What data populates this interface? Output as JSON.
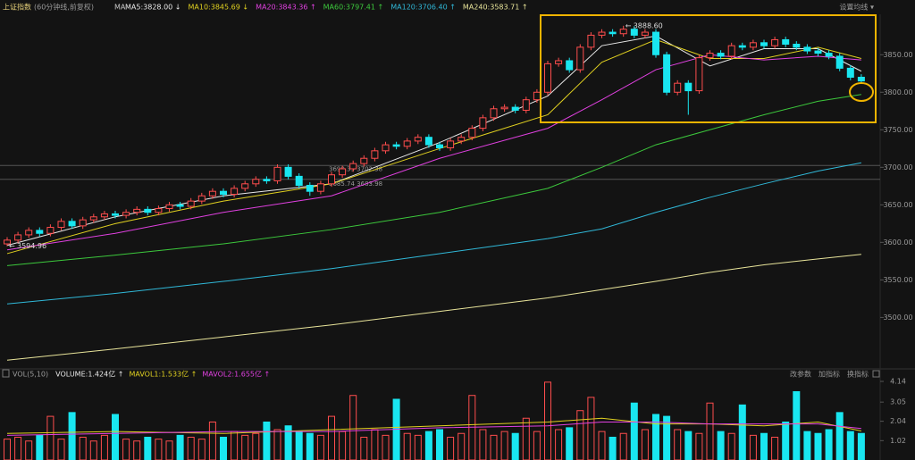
{
  "header": {
    "title": "上证指数",
    "subtitle": "(60分钟线,前复权)",
    "ma_label": "MA",
    "settings": "设置均线 ▾"
  },
  "chart_data": [
    {
      "type": "candlestick",
      "open": [
        3598,
        3603,
        3610,
        3616,
        3612,
        3620,
        3628,
        3622,
        3630,
        3634,
        3638,
        3636,
        3640,
        3644,
        3640,
        3645,
        3650,
        3648,
        3655,
        3662,
        3668,
        3664,
        3672,
        3678,
        3684,
        3682,
        3700,
        3688,
        3676,
        3668,
        3678,
        3690,
        3698,
        3705,
        3712,
        3722,
        3730,
        3728,
        3735,
        3740,
        3730,
        3726,
        3735,
        3740,
        3752,
        3766,
        3778,
        3780,
        3776,
        3790,
        3800,
        3838,
        3842,
        3830,
        3860,
        3876,
        3880,
        3878,
        3884,
        3876,
        3880,
        3850,
        3800,
        3812,
        3802,
        3846,
        3852,
        3848,
        3862,
        3860,
        3866,
        3862,
        3870,
        3864,
        3860,
        3855,
        3852,
        3848,
        3832,
        3820
      ],
      "high": [
        3607,
        3614,
        3620,
        3620,
        3624,
        3632,
        3632,
        3634,
        3638,
        3642,
        3642,
        3644,
        3648,
        3648,
        3649,
        3654,
        3654,
        3659,
        3666,
        3672,
        3672,
        3676,
        3682,
        3688,
        3688,
        3704,
        3704,
        3692,
        3680,
        3682,
        3694,
        3702,
        3709,
        3716,
        3726,
        3734,
        3734,
        3739,
        3744,
        3744,
        3734,
        3739,
        3744,
        3756,
        3770,
        3782,
        3784,
        3784,
        3794,
        3804,
        3842,
        3846,
        3846,
        3864,
        3880,
        3884,
        3884,
        3888.6,
        3888,
        3884,
        3884,
        3854,
        3816,
        3816,
        3850,
        3856,
        3856,
        3866,
        3866,
        3870,
        3870,
        3874,
        3874,
        3868,
        3864,
        3859,
        3856,
        3852,
        3836,
        3824
      ],
      "low": [
        3594.96,
        3599,
        3606,
        3608,
        3608,
        3616,
        3618,
        3618,
        3626,
        3630,
        3632,
        3632,
        3636,
        3636,
        3636,
        3641,
        3644,
        3644,
        3651,
        3658,
        3660,
        3660,
        3668,
        3674,
        3678,
        3678,
        3684,
        3672,
        3662,
        3664,
        3674,
        3686,
        3694,
        3701,
        3708,
        3718,
        3724,
        3724,
        3731,
        3726,
        3722,
        3722,
        3731,
        3736,
        3748,
        3762,
        3774,
        3772,
        3772,
        3786,
        3796,
        3834,
        3826,
        3826,
        3856,
        3872,
        3874,
        3874,
        3872,
        3872,
        3846,
        3796,
        3796,
        3770,
        3798,
        3842,
        3844,
        3844,
        3856,
        3856,
        3858,
        3858,
        3860,
        3856,
        3851,
        3848,
        3844,
        3828,
        3816,
        3811
      ],
      "close": [
        3603,
        3610,
        3616,
        3612,
        3620,
        3628,
        3622,
        3630,
        3634,
        3638,
        3636,
        3640,
        3644,
        3640,
        3645,
        3650,
        3648,
        3655,
        3662,
        3668,
        3664,
        3672,
        3678,
        3684,
        3682,
        3700,
        3688,
        3676,
        3668,
        3678,
        3690,
        3698,
        3705,
        3712,
        3722,
        3730,
        3728,
        3735,
        3740,
        3730,
        3726,
        3735,
        3740,
        3752,
        3766,
        3778,
        3780,
        3776,
        3790,
        3800,
        3838,
        3842,
        3830,
        3860,
        3876,
        3880,
        3878,
        3884,
        3876,
        3880,
        3850,
        3800,
        3812,
        3802,
        3846,
        3852,
        3848,
        3862,
        3860,
        3866,
        3862,
        3870,
        3864,
        3860,
        3855,
        3852,
        3848,
        3832,
        3820,
        3815
      ],
      "up_color": "#ff4d4d",
      "down_color": "#19e6f0",
      "ylim": [
        3435,
        3911
      ],
      "yticks": [
        {
          "value": 3850,
          "label": "3850.00"
        },
        {
          "value": 3800,
          "label": "3800.00"
        },
        {
          "value": 3750,
          "label": "3750.00"
        },
        {
          "value": 3700,
          "label": "3700.00"
        },
        {
          "value": 3650,
          "label": "3650.00"
        },
        {
          "value": 3600,
          "label": "3600.00"
        },
        {
          "value": 3550,
          "label": "3550.00"
        },
        {
          "value": 3500,
          "label": "3500.00"
        }
      ],
      "series": [
        {
          "name": "MA5:3828.00 ↓",
          "color": "#e8e8e8",
          "x": [
            0,
            10,
            20,
            30,
            40,
            50,
            55,
            60,
            65,
            70,
            75,
            79
          ],
          "values": [
            3596,
            3634,
            3662,
            3678,
            3733,
            3795,
            3862,
            3875,
            3835,
            3858,
            3858,
            3828
          ]
        },
        {
          "name": "MA10:3845.69 ↓",
          "color": "#e0d020",
          "x": [
            0,
            10,
            20,
            30,
            40,
            50,
            55,
            60,
            65,
            70,
            75,
            79
          ],
          "values": [
            3585,
            3625,
            3655,
            3678,
            3725,
            3770,
            3840,
            3870,
            3845,
            3845,
            3860,
            3845
          ]
        },
        {
          "name": "MA20:3843.36 ↑",
          "color": "#e040e0",
          "x": [
            0,
            10,
            20,
            30,
            40,
            50,
            55,
            60,
            65,
            70,
            75,
            79
          ],
          "values": [
            3590,
            3612,
            3640,
            3662,
            3712,
            3752,
            3790,
            3830,
            3850,
            3843,
            3848,
            3843
          ]
        },
        {
          "name": "MA60:3797.41 ↑",
          "color": "#3cc83c",
          "x": [
            0,
            10,
            20,
            30,
            40,
            50,
            55,
            60,
            65,
            70,
            75,
            79
          ],
          "values": [
            3569,
            3583,
            3598,
            3617,
            3640,
            3672,
            3700,
            3730,
            3750,
            3770,
            3788,
            3797
          ]
        },
        {
          "name": "MA120:3706.40 ↑",
          "color": "#30b8d8",
          "x": [
            0,
            10,
            20,
            30,
            40,
            50,
            55,
            60,
            65,
            70,
            75,
            79
          ],
          "values": [
            3518,
            3532,
            3548,
            3565,
            3585,
            3605,
            3618,
            3640,
            3660,
            3678,
            3695,
            3706
          ]
        },
        {
          "name": "MA240:3583.71 ↑",
          "color": "#e8e49a",
          "x": [
            0,
            10,
            20,
            30,
            40,
            50,
            55,
            60,
            65,
            70,
            75,
            79
          ],
          "values": [
            3443,
            3458,
            3474,
            3490,
            3508,
            3526,
            3537,
            3548,
            3560,
            3570,
            3578,
            3584
          ]
        }
      ],
      "hlines": [
        {
          "value": 3702.38,
          "label": "3690.39 3702.38"
        },
        {
          "value": 3683.98,
          "label": "3685.74 3683.98"
        }
      ],
      "annotations": [
        {
          "text": "3888.60",
          "value": 3888.6
        },
        {
          "text": "3594.96",
          "value": 3594.96
        }
      ]
    },
    {
      "type": "bar",
      "title": "VOL(5,10)",
      "volume_label": "VOLUME:1.424亿 ↑",
      "values": [
        1.1,
        1.2,
        1.0,
        1.3,
        2.3,
        1.1,
        2.5,
        1.2,
        1.0,
        1.3,
        2.4,
        1.1,
        1.0,
        1.2,
        1.1,
        1.0,
        1.3,
        1.2,
        1.1,
        2.0,
        1.2,
        1.5,
        1.3,
        1.4,
        2.0,
        1.6,
        1.8,
        1.5,
        1.4,
        1.3,
        2.3,
        1.5,
        3.4,
        1.2,
        1.6,
        1.3,
        3.2,
        1.4,
        1.3,
        1.5,
        1.6,
        1.2,
        1.4,
        3.4,
        1.6,
        1.3,
        1.5,
        1.4,
        2.2,
        1.5,
        4.1,
        1.6,
        1.7,
        2.6,
        3.3,
        1.5,
        1.2,
        1.4,
        3.0,
        1.6,
        2.4,
        2.3,
        1.6,
        1.5,
        1.4,
        3.0,
        1.5,
        1.4,
        2.9,
        1.3,
        1.4,
        1.2,
        2.0,
        3.6,
        1.5,
        1.4,
        1.6,
        2.5,
        1.5,
        1.4
      ],
      "ylim": [
        0,
        4.14
      ],
      "yticks": [
        4.14,
        3.05,
        2.04,
        1.02
      ],
      "series": [
        {
          "name": "MAVOL1:1.533亿 ↑",
          "color": "#e0d020",
          "x": [
            0,
            10,
            20,
            30,
            40,
            50,
            55,
            60,
            65,
            70,
            75,
            79
          ],
          "values": [
            1.4,
            1.5,
            1.4,
            1.6,
            1.8,
            2.0,
            2.2,
            1.9,
            1.9,
            1.8,
            2.0,
            1.53
          ]
        },
        {
          "name": "MAVOL2:1.655亿 ↑",
          "color": "#e040e0",
          "x": [
            0,
            10,
            20,
            30,
            40,
            50,
            55,
            60,
            65,
            70,
            75,
            79
          ],
          "values": [
            1.3,
            1.4,
            1.5,
            1.5,
            1.7,
            1.8,
            2.0,
            2.0,
            1.9,
            1.9,
            1.9,
            1.66
          ]
        }
      ],
      "buttons": [
        "改参数",
        "加指标",
        "换指标"
      ]
    }
  ]
}
